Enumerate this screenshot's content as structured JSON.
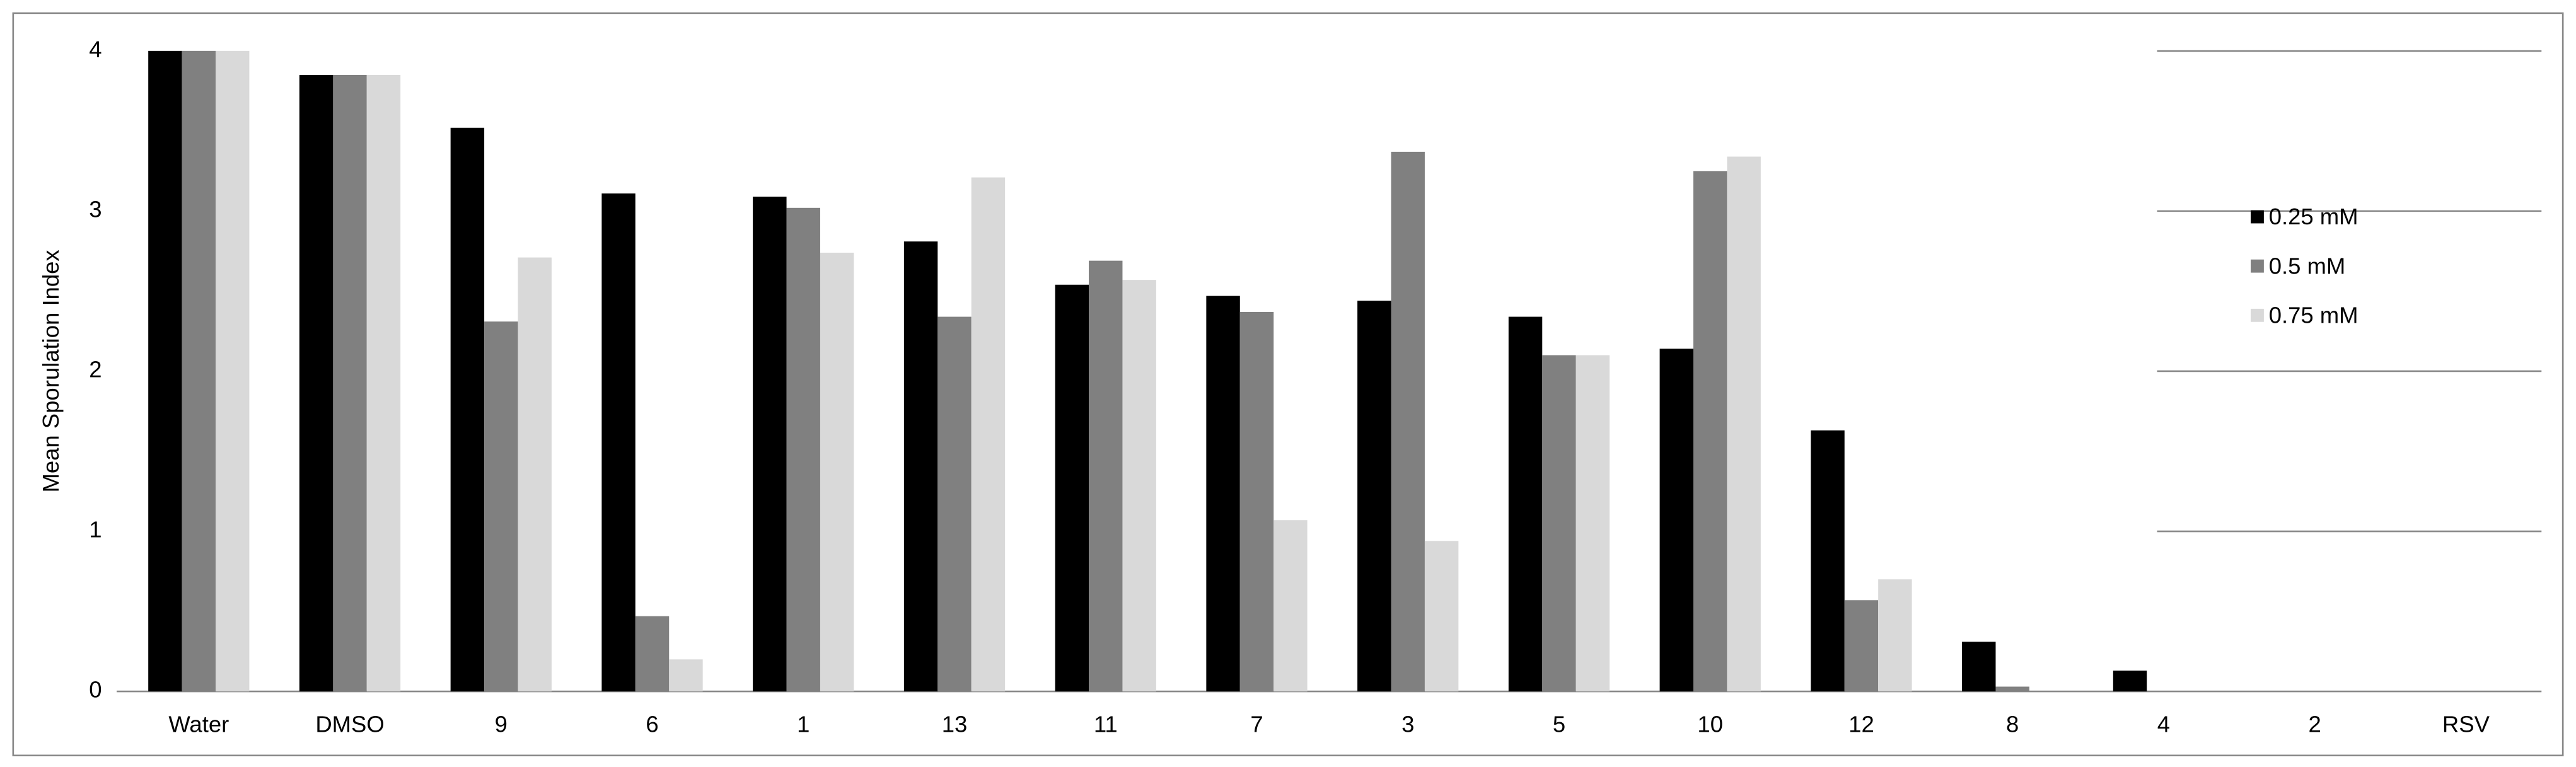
{
  "chart_data": {
    "type": "bar",
    "y_label": "Mean Sporulation Index",
    "categories": [
      "Water",
      "DMSO",
      "9",
      "6",
      "1",
      "13",
      "11",
      "7",
      "3",
      "5",
      "10",
      "12",
      "8",
      "4",
      "2",
      "RSV"
    ],
    "series": [
      {
        "name": "0.25 mM",
        "color": "#000000",
        "values": [
          4,
          3.85,
          3.52,
          3.11,
          3.09,
          2.81,
          2.54,
          2.47,
          2.44,
          2.34,
          2.14,
          1.63,
          0.31,
          0.13,
          0,
          0
        ]
      },
      {
        "name": "0.5 mM",
        "color": "#808080",
        "values": [
          4,
          3.85,
          2.31,
          0.47,
          3.02,
          2.34,
          2.69,
          2.37,
          3.37,
          2.1,
          3.25,
          0.57,
          0.03,
          0,
          0,
          0
        ]
      },
      {
        "name": "0.75 mM",
        "color": "#d9d9d9",
        "values": [
          4,
          3.85,
          2.71,
          0.2,
          2.74,
          3.21,
          2.57,
          1.07,
          0.94,
          2.1,
          3.34,
          0.7,
          0,
          0,
          0,
          0
        ]
      }
    ],
    "ylim": [
      0,
      4
    ],
    "yticks": [
      0,
      1,
      2,
      3,
      4
    ],
    "grid": true,
    "legend": "right"
  }
}
